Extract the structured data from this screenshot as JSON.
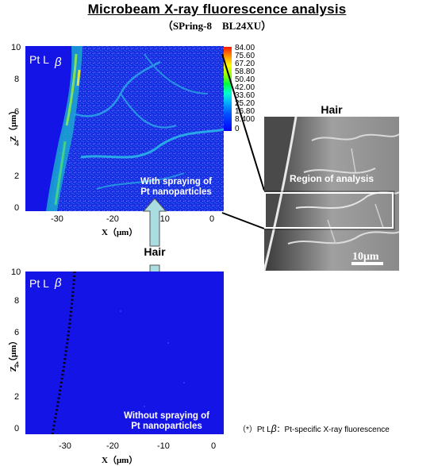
{
  "header": {
    "title": "Microbeam X-ray fluorescence analysis",
    "subtitle": "（SPring-8　BL24XU）"
  },
  "top_plot": {
    "element_label": "Pt L",
    "element_label_sub": "β",
    "annotation_line1": "With spraying of",
    "annotation_line2": "Pt nanoparticles",
    "y_ticks": [
      "10",
      "8",
      "6",
      "4",
      "2",
      "0"
    ],
    "x_ticks": [
      "-30",
      "-20",
      "-10",
      "0"
    ],
    "y_label": "Z（μm）",
    "x_label": "X（μm）"
  },
  "bottom_plot": {
    "element_label": "Pt L",
    "element_label_sub": "β",
    "annotation_line1": "Without spraying of",
    "annotation_line2": "Pt nanoparticles",
    "y_ticks": [
      "10",
      "8",
      "6",
      "4",
      "2",
      "0"
    ],
    "x_ticks": [
      "-30",
      "-20",
      "-10",
      "0"
    ],
    "y_label": "Z（μm）",
    "x_label": "X（μm）"
  },
  "colorbar": {
    "labels": [
      "84.00",
      "75.60",
      "67.20",
      "58.80",
      "50.40",
      "42.00",
      "33.60",
      "25.20",
      "16.80",
      "8.400",
      "0"
    ]
  },
  "arrow_label": "Hair",
  "sem_image": {
    "title": "Hair",
    "region_label": "Region of analysis",
    "scale_label": "10μm"
  },
  "footnote": "（*）Pt L",
  "footnote_sub": "β",
  "footnote_rest": "：Pt-specific X-ray fluorescence",
  "colors": {
    "map_background": "#1414e6",
    "arrow_fill": "#a9dde2",
    "title_color": "#000000"
  }
}
